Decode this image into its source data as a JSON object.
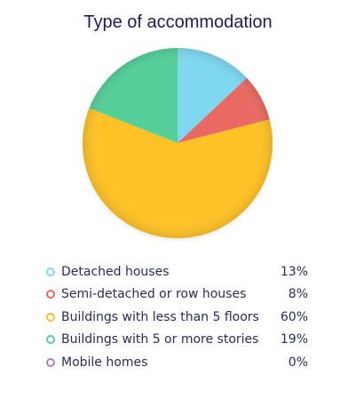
{
  "chart_data": {
    "type": "pie",
    "title": "Type of accommodation",
    "categories": [
      "Detached houses",
      "Semi-detached or row houses",
      "Buildings with less than 5 floors",
      "Buildings with 5 or more stories",
      "Mobile homes"
    ],
    "values": [
      13,
      8,
      60,
      19,
      0
    ],
    "value_labels": [
      "13%",
      "8%",
      "60%",
      "19%",
      "0%"
    ],
    "colors": [
      "#7dd8f0",
      "#ea6a63",
      "#ffc226",
      "#55cf9a",
      "#b07fc4"
    ],
    "legend_placement": "bottom"
  }
}
